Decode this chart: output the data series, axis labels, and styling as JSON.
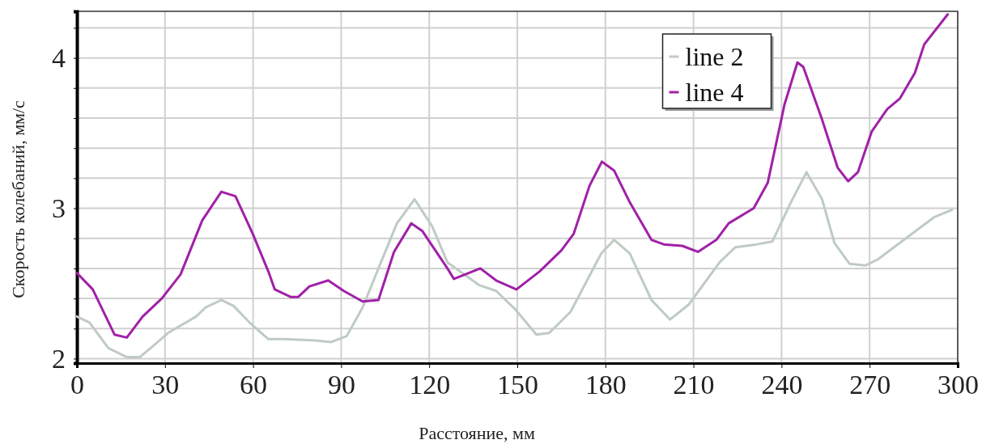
{
  "chart_data": {
    "type": "line",
    "xlabel": "Расстояние, мм",
    "ylabel": "Скорость колебаний, мм/с",
    "xlim": [
      0,
      300
    ],
    "ylim": [
      1.97,
      4.31
    ],
    "xticks": [
      0,
      30,
      60,
      90,
      120,
      150,
      180,
      210,
      240,
      270,
      300
    ],
    "yticks": [
      2,
      {
        "value": 2.2,
        "label": null
      },
      {
        "value": 2.4,
        "label": null
      },
      {
        "value": 2.6,
        "label": null
      },
      {
        "value": 2.8,
        "label": null
      },
      3,
      {
        "value": 3.2,
        "label": null
      },
      {
        "value": 3.4,
        "label": null
      },
      {
        "value": 3.6,
        "label": null
      },
      {
        "value": 3.8,
        "label": null
      },
      4,
      {
        "value": 4.2,
        "label": null
      }
    ],
    "grid": true,
    "legend": "top right",
    "line_style": "solid",
    "marker": "none",
    "series": [
      {
        "name": "line 2",
        "color": "#bfcbc3",
        "x": [
          0,
          4.3,
          10.7,
          17,
          21.4,
          25.7,
          31,
          40.6,
          43.8,
          49.2,
          53.4,
          58.8,
          65.2,
          70.6,
          81.3,
          86.6,
          91.9,
          97.3,
          102.7,
          109,
          115,
          121,
          126.2,
          136.9,
          142.8,
          149.2,
          156.5,
          160.8,
          168.1,
          178.6,
          183,
          188.3,
          195.7,
          202,
          208.4,
          218.9,
          224.2,
          231.6,
          236.9,
          243.2,
          248.5,
          253.8,
          258,
          263.2,
          268.6,
          272.8,
          280.3,
          291.9,
          298.1
        ],
        "values": [
          2.28,
          2.24,
          2.07,
          2.01,
          2.01,
          2.08,
          2.17,
          2.28,
          2.34,
          2.39,
          2.35,
          2.24,
          2.13,
          2.13,
          2.12,
          2.11,
          2.15,
          2.34,
          2.6,
          2.9,
          3.06,
          2.88,
          2.64,
          2.49,
          2.45,
          2.33,
          2.16,
          2.17,
          2.31,
          2.7,
          2.79,
          2.7,
          2.39,
          2.26,
          2.36,
          2.64,
          2.74,
          2.76,
          2.78,
          3.04,
          3.24,
          3.06,
          2.77,
          2.63,
          2.62,
          2.66,
          2.77,
          2.94,
          2.99
        ]
      },
      {
        "name": "line 4",
        "color": "#a020a8",
        "x": [
          0,
          5.4,
          12.8,
          17,
          22.4,
          28.9,
          35.3,
          42.7,
          49.2,
          54,
          59.9,
          65.2,
          67.4,
          72.8,
          75.4,
          79.2,
          85.6,
          90.9,
          97.3,
          102.7,
          108,
          113.9,
          117.6,
          126.2,
          128.4,
          137.4,
          142.8,
          149.7,
          157.6,
          165,
          169.2,
          174.6,
          178.8,
          183,
          188.3,
          195.7,
          199.9,
          206.2,
          211.5,
          217.8,
          222,
          230.5,
          235.3,
          241,
          245.4,
          247.4,
          253.8,
          259.1,
          262.7,
          266,
          270.7,
          276,
          280.3,
          285.4,
          288.6,
          296.6
        ],
        "values": [
          2.57,
          2.46,
          2.16,
          2.14,
          2.28,
          2.4,
          2.56,
          2.92,
          3.11,
          3.08,
          2.83,
          2.58,
          2.46,
          2.41,
          2.41,
          2.48,
          2.52,
          2.45,
          2.38,
          2.39,
          2.71,
          2.9,
          2.85,
          2.6,
          2.53,
          2.6,
          2.52,
          2.46,
          2.58,
          2.72,
          2.83,
          3.15,
          3.31,
          3.25,
          3.04,
          2.79,
          2.76,
          2.75,
          2.71,
          2.79,
          2.9,
          3,
          3.17,
          3.69,
          3.97,
          3.94,
          3.59,
          3.27,
          3.18,
          3.24,
          3.51,
          3.66,
          3.73,
          3.9,
          4.09,
          4.29
        ]
      }
    ]
  }
}
